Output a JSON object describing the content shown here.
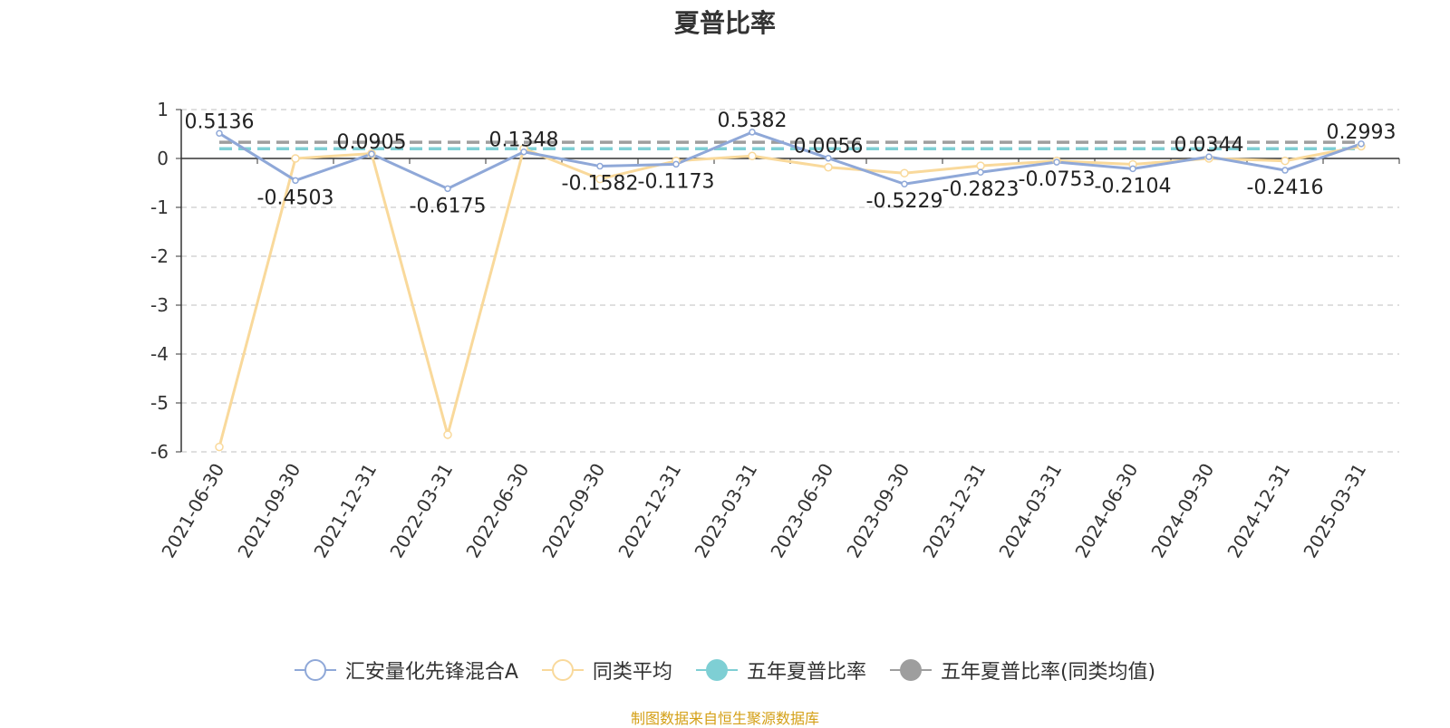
{
  "title": "夏普比率",
  "source": "制图数据来自恒生聚源数据库",
  "chart_data": {
    "type": "line",
    "categories": [
      "2021-06-30",
      "2021-09-30",
      "2021-12-31",
      "2022-03-31",
      "2022-06-30",
      "2022-09-30",
      "2022-12-31",
      "2023-03-31",
      "2023-06-30",
      "2023-09-30",
      "2023-12-31",
      "2024-03-31",
      "2024-06-30",
      "2024-09-30",
      "2024-12-31",
      "2025-03-31"
    ],
    "ylim": [
      -6,
      1
    ],
    "yticks": [
      "1",
      "0",
      "-1",
      "-2",
      "-3",
      "-4",
      "-5",
      "-6"
    ],
    "grid": true,
    "legend_position": "bottom",
    "series": [
      {
        "name": "汇安量化先锋混合A",
        "color": "#8fa8d8",
        "values": [
          0.5136,
          -0.4503,
          0.0905,
          -0.6175,
          0.1348,
          -0.1582,
          -0.1173,
          0.5382,
          0.0056,
          -0.5229,
          -0.2823,
          -0.0753,
          -0.2104,
          0.0344,
          -0.2416,
          0.2993
        ],
        "labels": [
          "0.5136",
          "-0.4503",
          "0.0905",
          "-0.6175",
          "0.1348",
          "-0.1582",
          "-0.1173",
          "0.5382",
          "0.0056",
          "-0.5229",
          "-0.2823",
          "-0.0753",
          "-0.2104",
          "0.0344",
          "-0.2416",
          "0.2993"
        ]
      },
      {
        "name": "同类平均",
        "color": "#f9d99b",
        "values": [
          -5.9,
          0.0,
          0.1,
          -5.65,
          0.2,
          -0.42,
          -0.05,
          0.05,
          -0.18,
          -0.3,
          -0.15,
          -0.05,
          -0.12,
          0.0,
          -0.05,
          0.25
        ]
      },
      {
        "name": "五年夏普比率",
        "color": "#7ecfd4",
        "dashed": true,
        "values": [
          0.2,
          0.2,
          0.2,
          0.2,
          0.2,
          0.2,
          0.2,
          0.2,
          0.2,
          0.2,
          0.2,
          0.2,
          0.2,
          0.2,
          0.2,
          0.2
        ]
      },
      {
        "name": "五年夏普比率(同类均值)",
        "color": "#9e9e9e",
        "dashed": true,
        "values": [
          0.33,
          0.33,
          0.33,
          0.33,
          0.33,
          0.33,
          0.33,
          0.33,
          0.33,
          0.33,
          0.33,
          0.33,
          0.33,
          0.33,
          0.33,
          0.33
        ]
      }
    ]
  }
}
